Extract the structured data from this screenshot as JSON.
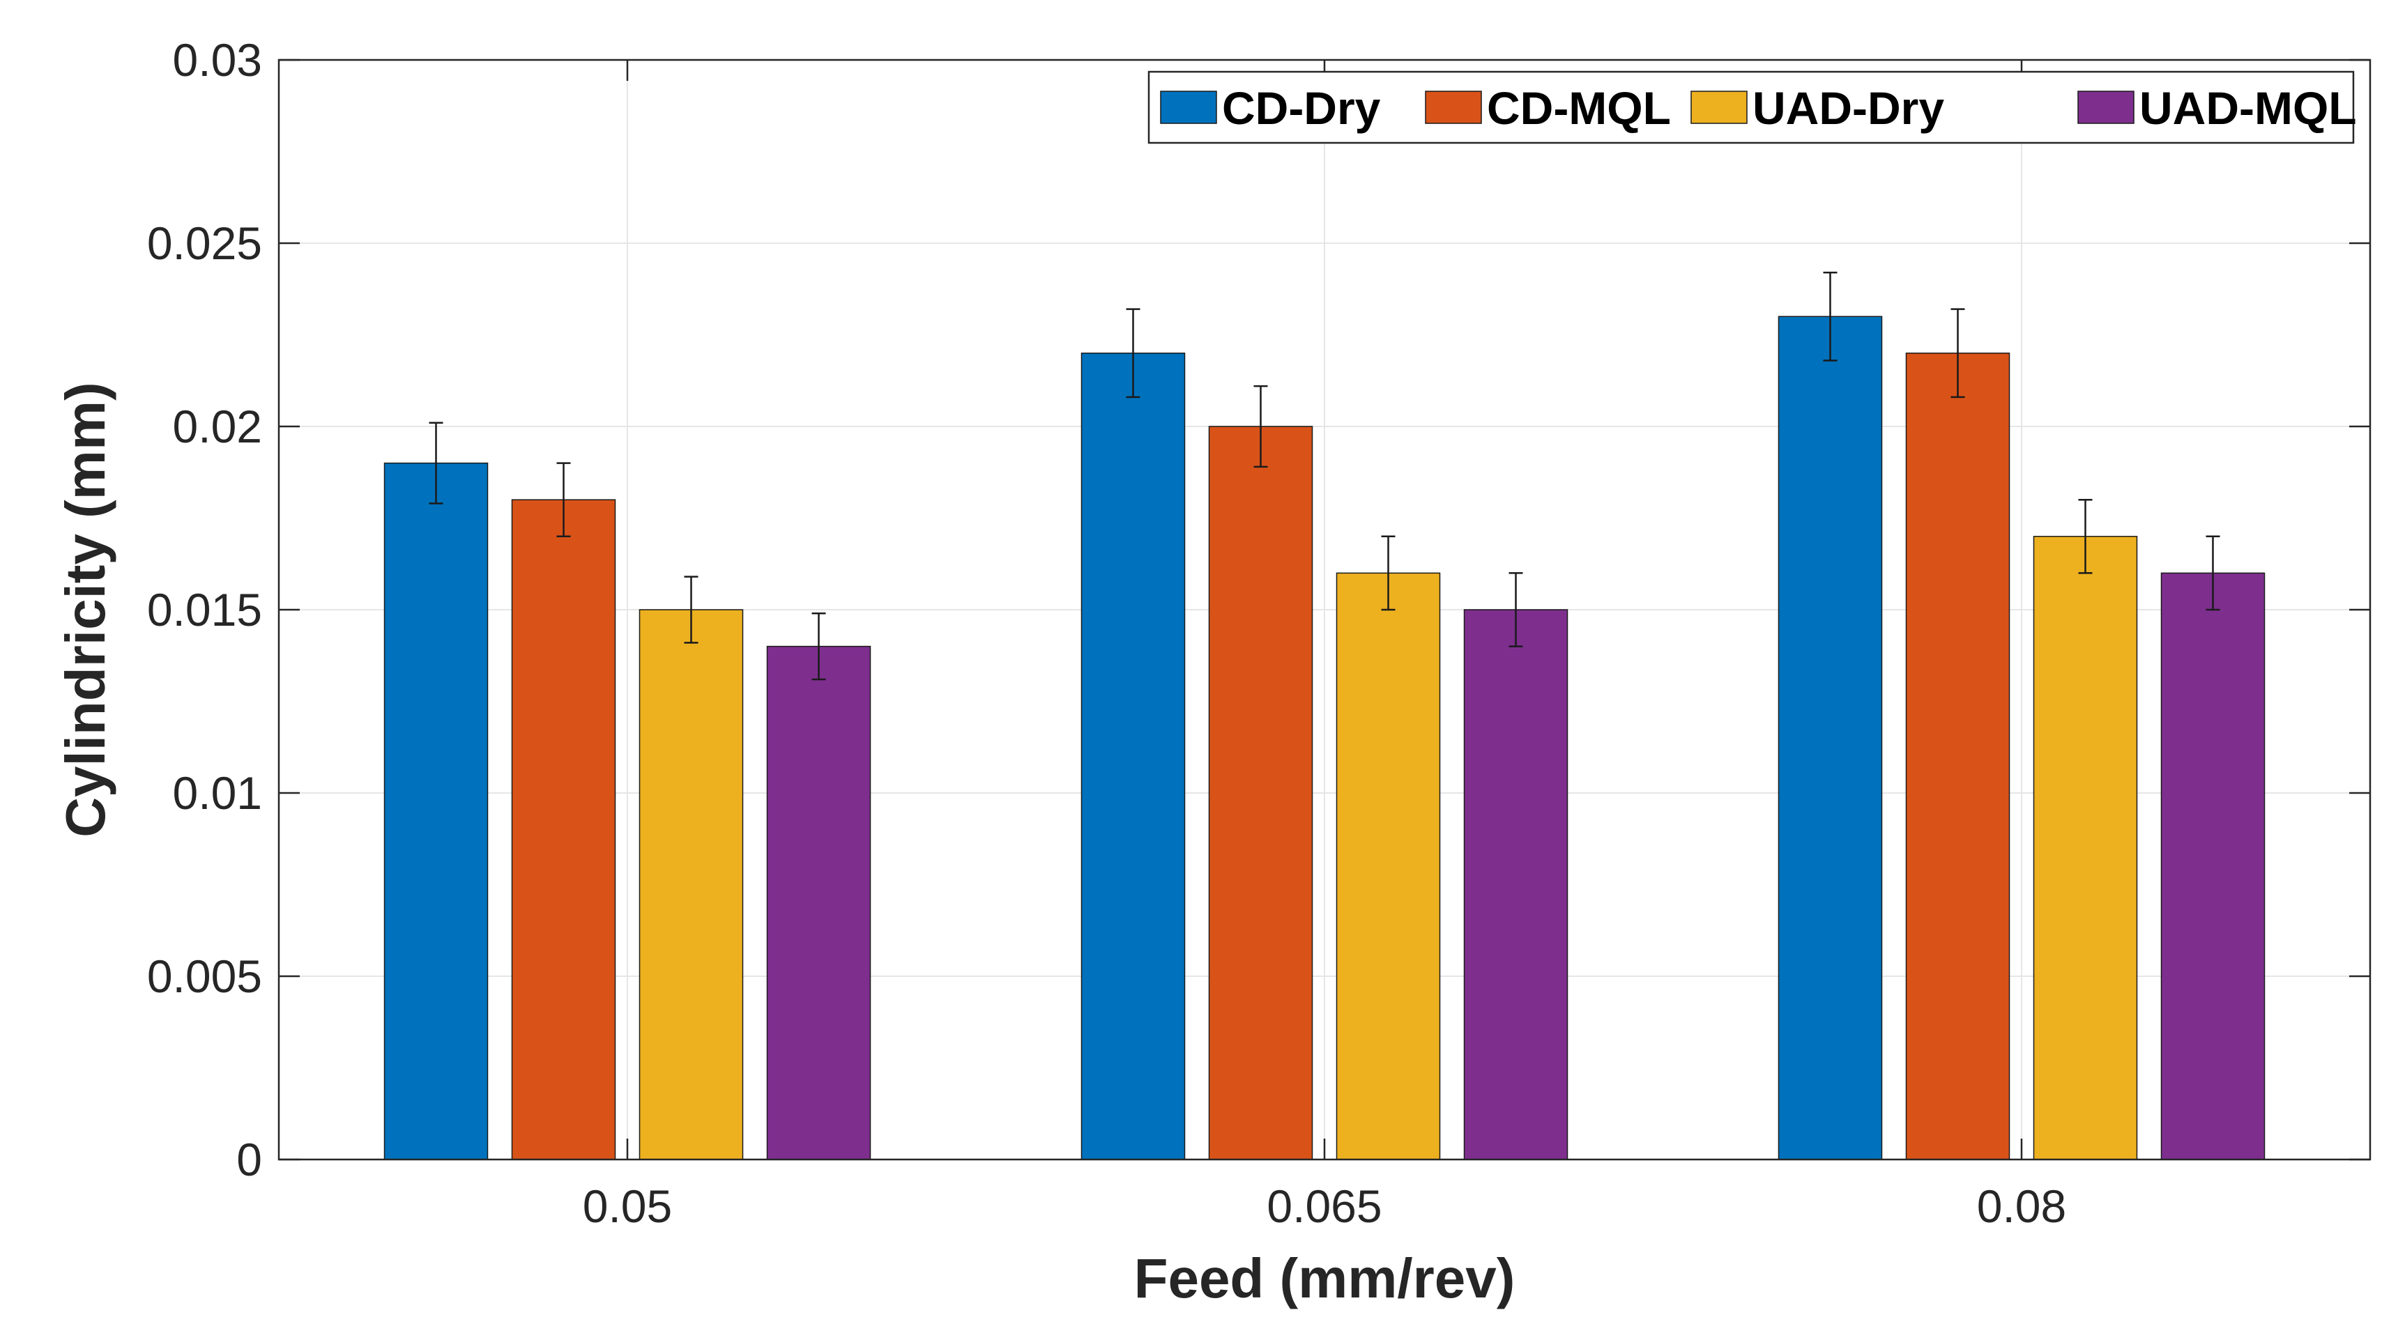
{
  "chart_data": {
    "type": "bar",
    "title": "",
    "xlabel": "Feed (mm/rev)",
    "ylabel": "Cylindricity  (mm)",
    "categories": [
      "0.05",
      "0.065",
      "0.08"
    ],
    "ylim": [
      0,
      0.03
    ],
    "yticks": [
      0,
      0.005,
      0.01,
      0.015,
      0.02,
      0.025,
      0.03
    ],
    "ytick_labels": [
      "0",
      "0.005",
      "0.01",
      "0.015",
      "0.02",
      "0.025",
      "0.03"
    ],
    "grid": true,
    "legend_position": "top-right",
    "series": [
      {
        "name": "CD-Dry",
        "color": "#0072BD",
        "values": [
          0.019,
          0.022,
          0.023
        ],
        "errors": [
          0.0011,
          0.0012,
          0.0012
        ]
      },
      {
        "name": "CD-MQL",
        "color": "#D95319",
        "values": [
          0.018,
          0.02,
          0.022
        ],
        "errors": [
          0.001,
          0.0011,
          0.0012
        ]
      },
      {
        "name": "UAD-Dry",
        "color": "#EDB120",
        "values": [
          0.015,
          0.016,
          0.017
        ],
        "errors": [
          0.0009,
          0.001,
          0.001
        ]
      },
      {
        "name": "UAD-MQL",
        "color": "#7E2F8E",
        "values": [
          0.014,
          0.015,
          0.016
        ],
        "errors": [
          0.0009,
          0.001,
          0.001
        ]
      }
    ]
  }
}
